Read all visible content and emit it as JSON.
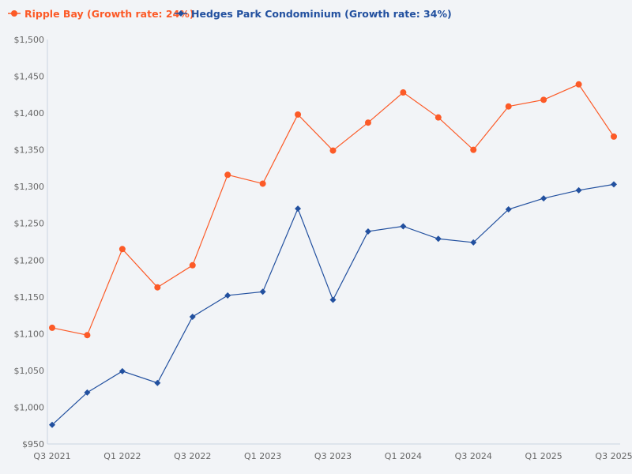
{
  "chart_data": {
    "type": "line",
    "title": "",
    "xlabel": "",
    "ylabel": "",
    "ylim": [
      950,
      1500
    ],
    "y_ticks": [
      950,
      1000,
      1050,
      1100,
      1150,
      1200,
      1250,
      1300,
      1350,
      1400,
      1450,
      1500
    ],
    "y_tick_labels": [
      "$950",
      "$1,000",
      "$1,050",
      "$1,100",
      "$1,150",
      "$1,200",
      "$1,250",
      "$1,300",
      "$1,350",
      "$1,400",
      "$1,450",
      "$1,500"
    ],
    "x_tick_labels": [
      "Q3 2021",
      "Q1 2022",
      "Q3 2022",
      "Q1 2023",
      "Q3 2023",
      "Q1 2024",
      "Q3 2024",
      "Q1 2025",
      "Q3 2025"
    ],
    "grid": false,
    "legend_position": "top-left",
    "series": [
      {
        "name": "Ripple Bay (Growth rate: 24%)",
        "color": "#fc5a27",
        "marker": "circle",
        "values": [
          1108,
          1098,
          1215,
          1163,
          1193,
          1316,
          1304,
          1398,
          1349,
          1387,
          1428,
          1394,
          1350,
          1409,
          1418,
          1439,
          1368
        ]
      },
      {
        "name": "Hedges Park Condominium (Growth rate: 34%)",
        "color": "#22509f",
        "marker": "diamond",
        "values": [
          976,
          1020,
          1049,
          1033,
          1123,
          1152,
          1157,
          1270,
          1146,
          1239,
          1246,
          1229,
          1224,
          1269,
          1284,
          1295,
          1303
        ]
      }
    ]
  }
}
